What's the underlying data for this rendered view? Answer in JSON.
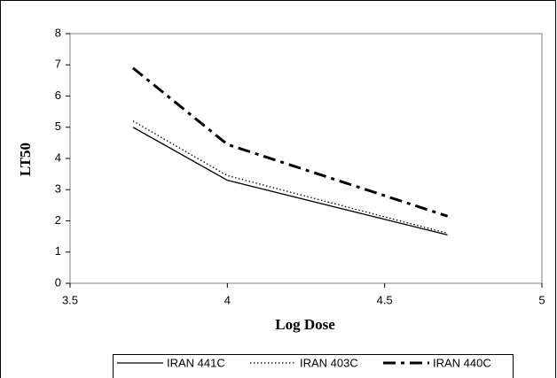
{
  "chart_data": {
    "type": "line",
    "x_label": "Log Dose",
    "y_label": "LT50",
    "x": [
      3.7,
      4,
      4.7
    ],
    "series": [
      {
        "name": "IRAN 441C",
        "color": "#000000",
        "dash": "solid",
        "values": [
          5.0,
          3.3,
          1.55
        ]
      },
      {
        "name": "IRAN 403C",
        "color": "#000000",
        "dash": "dotted",
        "values": [
          5.2,
          3.45,
          1.6
        ]
      },
      {
        "name": "IRAN 440C",
        "color": "#000000",
        "dash": "dash-dot",
        "values": [
          6.9,
          4.45,
          2.15
        ]
      }
    ],
    "xlim": [
      3.5,
      5
    ],
    "xticks": [
      3.5,
      4,
      4.5,
      5
    ],
    "ylim": [
      0,
      8
    ],
    "yticks": [
      0,
      1,
      2,
      3,
      4,
      5,
      6,
      7,
      8
    ],
    "grid": false,
    "legend": "bottom"
  }
}
